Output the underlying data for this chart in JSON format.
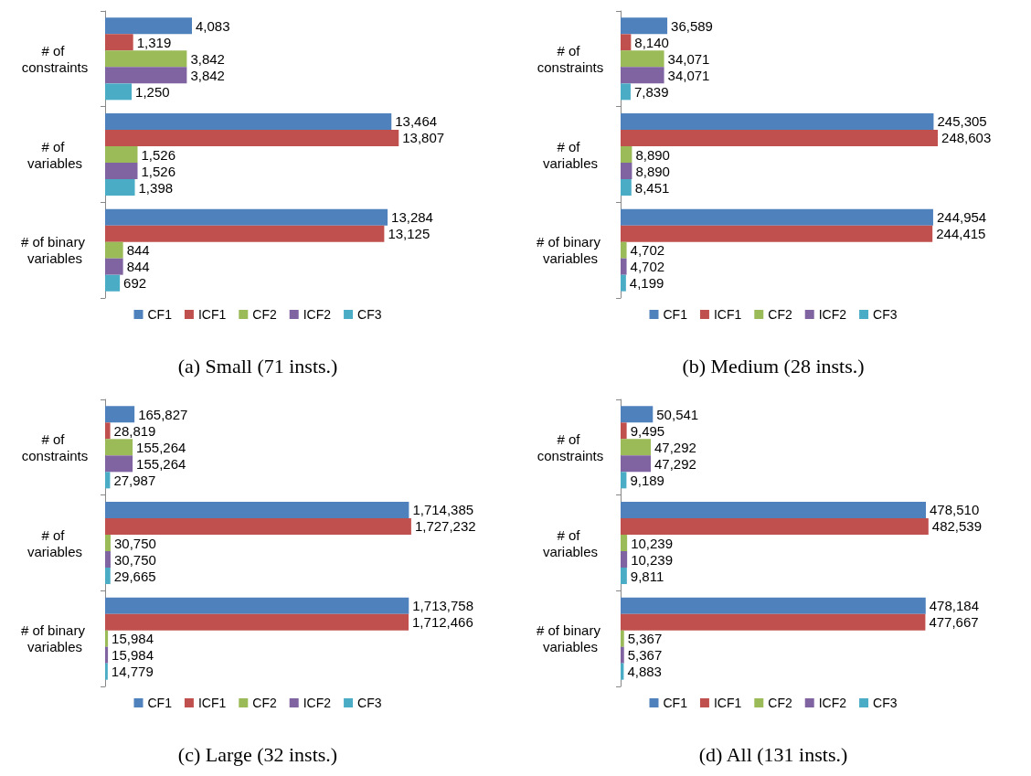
{
  "chart_data": [
    {
      "type": "bar",
      "orientation": "horizontal",
      "title": "(a) Small (71 insts.)",
      "categories": [
        "# of constraints",
        "# of variables",
        "# of binary variables"
      ],
      "legend": "bottom",
      "grid": false,
      "tick_labels": "y",
      "series": [
        {
          "name": "CF1",
          "color": "#4f81bd",
          "values": [
            4083,
            13464,
            13284
          ],
          "value_labels": [
            "4,083",
            "13,464",
            "13,284"
          ]
        },
        {
          "name": "ICF1",
          "color": "#c0504d",
          "values": [
            1319,
            13807,
            13125
          ],
          "value_labels": [
            "1,319",
            "13,807",
            "13,125"
          ]
        },
        {
          "name": "CF2",
          "color": "#9bbb59",
          "values": [
            3842,
            1526,
            844
          ],
          "value_labels": [
            "3,842",
            "1,526",
            "844"
          ]
        },
        {
          "name": "ICF2",
          "color": "#8064a2",
          "values": [
            3842,
            1526,
            844
          ],
          "value_labels": [
            "3,842",
            "1,526",
            "844"
          ]
        },
        {
          "name": "CF3",
          "color": "#4bacc6",
          "values": [
            1250,
            1398,
            692
          ],
          "value_labels": [
            "1,250",
            "1,398",
            "692"
          ]
        }
      ]
    },
    {
      "type": "bar",
      "orientation": "horizontal",
      "title": "(b) Medium (28 insts.)",
      "categories": [
        "# of constraints",
        "# of variables",
        "# of binary variables"
      ],
      "legend": "bottom",
      "grid": false,
      "tick_labels": "y",
      "series": [
        {
          "name": "CF1",
          "color": "#4f81bd",
          "values": [
            36589,
            245305,
            244954
          ],
          "value_labels": [
            "36,589",
            "245,305",
            "244,954"
          ]
        },
        {
          "name": "ICF1",
          "color": "#c0504d",
          "values": [
            8140,
            248603,
            244415
          ],
          "value_labels": [
            "8,140",
            "248,603",
            "244,415"
          ]
        },
        {
          "name": "CF2",
          "color": "#9bbb59",
          "values": [
            34071,
            8890,
            4702
          ],
          "value_labels": [
            "34,071",
            "8,890",
            "4,702"
          ]
        },
        {
          "name": "ICF2",
          "color": "#8064a2",
          "values": [
            34071,
            8890,
            4702
          ],
          "value_labels": [
            "34,071",
            "8,890",
            "4,702"
          ]
        },
        {
          "name": "CF3",
          "color": "#4bacc6",
          "values": [
            7839,
            8451,
            4199
          ],
          "value_labels": [
            "7,839",
            "8,451",
            "4,199"
          ]
        }
      ]
    },
    {
      "type": "bar",
      "orientation": "horizontal",
      "title": "(c) Large (32 insts.)",
      "categories": [
        "# of constraints",
        "# of variables",
        "# of binary variables"
      ],
      "legend": "bottom",
      "grid": false,
      "tick_labels": "y",
      "series": [
        {
          "name": "CF1",
          "color": "#4f81bd",
          "values": [
            165827,
            1714385,
            1713758
          ],
          "value_labels": [
            "165,827",
            "1,714,385",
            "1,713,758"
          ]
        },
        {
          "name": "ICF1",
          "color": "#c0504d",
          "values": [
            28819,
            1727232,
            1712466
          ],
          "value_labels": [
            "28,819",
            "1,727,232",
            "1,712,466"
          ]
        },
        {
          "name": "CF2",
          "color": "#9bbb59",
          "values": [
            155264,
            30750,
            15984
          ],
          "value_labels": [
            "155,264",
            "30,750",
            "15,984"
          ]
        },
        {
          "name": "ICF2",
          "color": "#8064a2",
          "values": [
            155264,
            30750,
            15984
          ],
          "value_labels": [
            "155,264",
            "30,750",
            "15,984"
          ]
        },
        {
          "name": "CF3",
          "color": "#4bacc6",
          "values": [
            27987,
            29665,
            14779
          ],
          "value_labels": [
            "27,987",
            "29,665",
            "14,779"
          ]
        }
      ]
    },
    {
      "type": "bar",
      "orientation": "horizontal",
      "title": "(d) All (131 insts.)",
      "categories": [
        "# of constraints",
        "# of variables",
        "# of binary variables"
      ],
      "legend": "bottom",
      "grid": false,
      "tick_labels": "y",
      "series": [
        {
          "name": "CF1",
          "color": "#4f81bd",
          "values": [
            50541,
            478510,
            478184
          ],
          "value_labels": [
            "50,541",
            "478,510",
            "478,184"
          ]
        },
        {
          "name": "ICF1",
          "color": "#c0504d",
          "values": [
            9495,
            482539,
            477667
          ],
          "value_labels": [
            "9,495",
            "482,539",
            "477,667"
          ]
        },
        {
          "name": "CF2",
          "color": "#9bbb59",
          "values": [
            47292,
            10239,
            5367
          ],
          "value_labels": [
            "47,292",
            "10,239",
            "5,367"
          ]
        },
        {
          "name": "ICF2",
          "color": "#8064a2",
          "values": [
            47292,
            10239,
            5367
          ],
          "value_labels": [
            "47,292",
            "10,239",
            "5,367"
          ]
        },
        {
          "name": "CF3",
          "color": "#4bacc6",
          "values": [
            9189,
            9811,
            4883
          ],
          "value_labels": [
            "9,189",
            "9,811",
            "4,883"
          ]
        }
      ]
    }
  ]
}
